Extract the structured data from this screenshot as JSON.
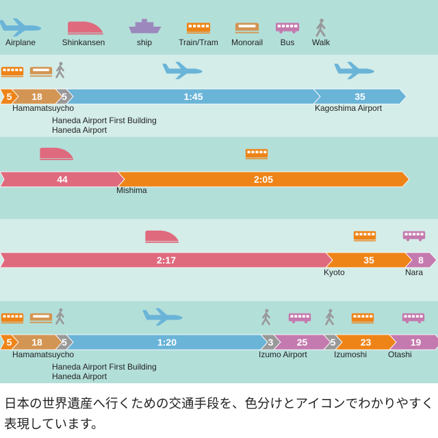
{
  "colors": {
    "airplane": "#6ab4d8",
    "shinkansen": "#df6a7e",
    "ship": "#9c88bd",
    "train": "#ee8418",
    "monorail": "#d39553",
    "bus": "#c47aae",
    "walk": "#999999",
    "band_dark": "#b3dfd9",
    "band_light": "#d4ede8"
  },
  "legend": [
    {
      "key": "airplane",
      "label": "Airplane",
      "icon": "airplane-icon"
    },
    {
      "key": "shinkansen",
      "label": "Shinkansen",
      "icon": "shinkansen-icon"
    },
    {
      "key": "ship",
      "label": "ship",
      "icon": "ship-icon"
    },
    {
      "key": "train",
      "label": "Train/Tram",
      "icon": "train-icon"
    },
    {
      "key": "monorail",
      "label": "Monorail",
      "icon": "monorail-icon"
    },
    {
      "key": "bus",
      "label": "Bus",
      "icon": "bus-icon"
    },
    {
      "key": "walk",
      "label": "Walk",
      "icon": "walk-icon"
    }
  ],
  "routes": [
    {
      "segments": [
        {
          "mode": "train",
          "label": "5"
        },
        {
          "mode": "monorail",
          "label": "18"
        },
        {
          "mode": "walk",
          "label": "5"
        },
        {
          "mode": "airplane",
          "label": "1:45"
        },
        {
          "mode": "airplane",
          "label": "35"
        }
      ],
      "stops": [
        {
          "lines": [
            "Hamamatsuycho"
          ]
        },
        {
          "lines": [
            "Haneda Airport First Building",
            "Haneda Airport"
          ]
        },
        {
          "lines": [
            "Kagoshima Airport"
          ]
        }
      ]
    },
    {
      "segments": [
        {
          "mode": "shinkansen",
          "label": "44"
        },
        {
          "mode": "train",
          "label": "2:05"
        }
      ],
      "stops": [
        {
          "lines": [
            "Mishima"
          ]
        }
      ]
    },
    {
      "segments": [
        {
          "mode": "shinkansen",
          "label": "2:17"
        },
        {
          "mode": "train",
          "label": "35"
        },
        {
          "mode": "bus",
          "label": "8"
        }
      ],
      "stops": [
        {
          "lines": [
            "Kyoto"
          ]
        },
        {
          "lines": [
            "Nara"
          ]
        }
      ]
    },
    {
      "segments": [
        {
          "mode": "train",
          "label": "5"
        },
        {
          "mode": "monorail",
          "label": "18"
        },
        {
          "mode": "walk",
          "label": "5"
        },
        {
          "mode": "airplane",
          "label": "1:20"
        },
        {
          "mode": "walk",
          "label": "3"
        },
        {
          "mode": "bus",
          "label": "25"
        },
        {
          "mode": "walk",
          "label": "5"
        },
        {
          "mode": "train",
          "label": "23"
        },
        {
          "mode": "bus",
          "label": "19"
        }
      ],
      "stops": [
        {
          "lines": [
            "Hamamatsuycho"
          ]
        },
        {
          "lines": [
            "Haneda Airport First Building",
            "Haneda Airport"
          ]
        },
        {
          "lines": [
            "Izumo Airport"
          ]
        },
        {
          "lines": [
            "Izumoshi"
          ]
        },
        {
          "lines": [
            "Otashi"
          ]
        }
      ]
    }
  ],
  "caption": "日本の世界遺産へ行くための交通手段を、色分けとアイコンでわかりやすく表現しています。"
}
